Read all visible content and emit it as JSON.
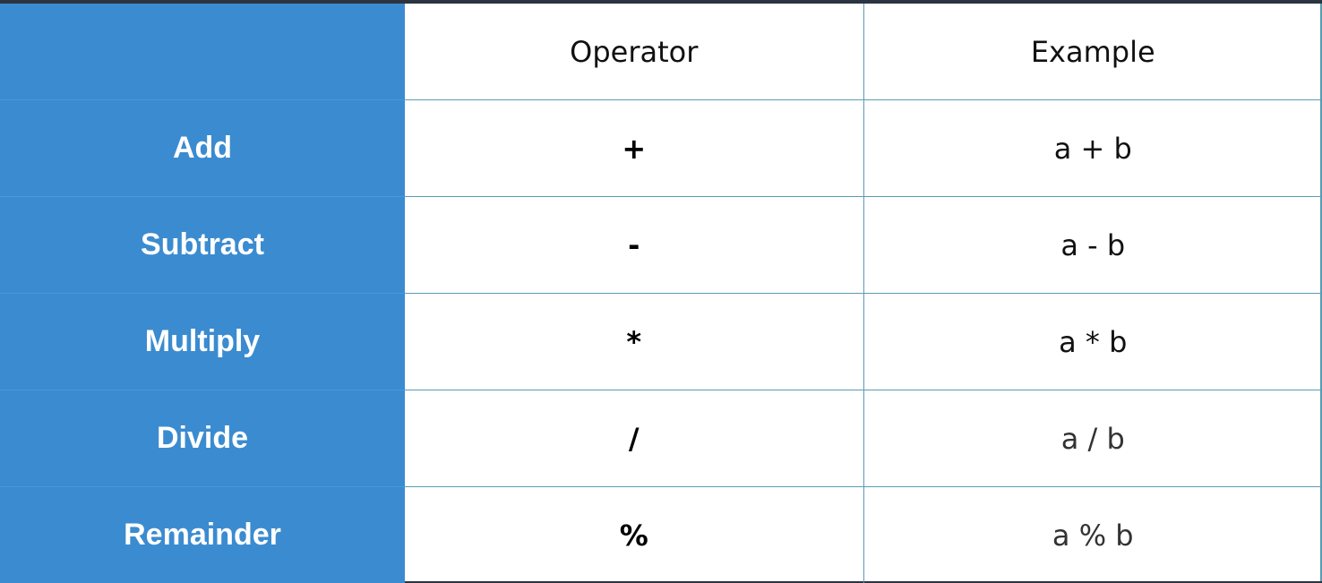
{
  "table": {
    "header": {
      "name": "",
      "operator": "Operator",
      "example": "Example"
    },
    "rows": [
      {
        "name": "Add",
        "operator": "+",
        "example": "a + b"
      },
      {
        "name": "Subtract",
        "operator": "-",
        "example": "a - b"
      },
      {
        "name": "Multiply",
        "operator": "*",
        "example": "a * b"
      },
      {
        "name": "Divide",
        "operator": "/",
        "example": "a / b"
      },
      {
        "name": "Remainder",
        "operator": "%",
        "example": "a % b"
      }
    ]
  },
  "colors": {
    "name_column_bg": "#3b8bd0",
    "grid_line": "#5a9bb3",
    "top_bar": "#2b3440"
  }
}
